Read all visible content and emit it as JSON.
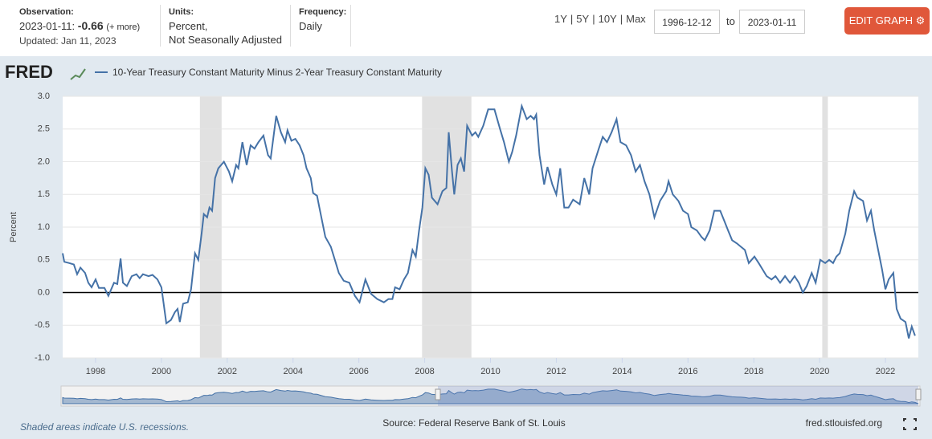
{
  "header": {
    "observation_label": "Observation:",
    "observation_date": "2023-01-11:",
    "observation_value": "-0.66",
    "more": "(+ more)",
    "updated": "Updated: Jan 11, 2023",
    "units_label": "Units:",
    "units_line1": "Percent,",
    "units_line2": "Not Seasonally Adjusted",
    "frequency_label": "Frequency:",
    "frequency": "Daily",
    "ranges": [
      "1Y",
      "5Y",
      "10Y",
      "Max"
    ],
    "range_separator": "|",
    "start_date": "1996-12-12",
    "to": "to",
    "end_date": "2023-01-11",
    "edit_button": "EDIT GRAPH"
  },
  "logo": "FRED",
  "footer": {
    "note": "Shaded areas indicate U.S. recessions.",
    "source": "Source: Federal Reserve Bank of St. Louis",
    "site": "fred.stlouisfed.org"
  },
  "chart_data": {
    "type": "line",
    "y_label": "Percent",
    "x": [
      1997.0,
      1997.05,
      1997.2,
      1997.34,
      1997.44,
      1997.54,
      1997.68,
      1997.78,
      1997.88,
      1998.0,
      1998.1,
      1998.27,
      1998.39,
      1998.56,
      1998.66,
      1998.76,
      1998.83,
      1998.95,
      1999.1,
      1999.24,
      1999.34,
      1999.44,
      1999.61,
      1999.73,
      1999.88,
      2000.0,
      2000.05,
      2000.15,
      2000.29,
      2000.41,
      2000.49,
      2000.56,
      2000.66,
      2000.8,
      2000.9,
      2001.02,
      2001.12,
      2001.22,
      2001.29,
      2001.39,
      2001.46,
      2001.54,
      2001.63,
      2001.73,
      2001.9,
      2002.05,
      2002.15,
      2002.27,
      2002.34,
      2002.46,
      2002.59,
      2002.71,
      2002.83,
      2002.95,
      2003.1,
      2003.24,
      2003.32,
      2003.49,
      2003.63,
      2003.76,
      2003.83,
      2003.95,
      2004.07,
      2004.2,
      2004.32,
      2004.41,
      2004.54,
      2004.61,
      2004.73,
      2004.8,
      2004.98,
      2005.15,
      2005.27,
      2005.39,
      2005.54,
      2005.71,
      2005.88,
      2006.02,
      2006.2,
      2006.37,
      2006.56,
      2006.76,
      2006.9,
      2007.02,
      2007.1,
      2007.24,
      2007.37,
      2007.49,
      2007.63,
      2007.73,
      2007.83,
      2007.93,
      2008.02,
      2008.12,
      2008.22,
      2008.39,
      2008.54,
      2008.66,
      2008.73,
      2008.83,
      2008.9,
      2009.0,
      2009.1,
      2009.2,
      2009.29,
      2009.44,
      2009.54,
      2009.63,
      2009.78,
      2009.93,
      2010.12,
      2010.29,
      2010.41,
      2010.56,
      2010.66,
      2010.78,
      2010.95,
      2011.1,
      2011.22,
      2011.32,
      2011.39,
      2011.49,
      2011.63,
      2011.73,
      2011.88,
      2012.0,
      2012.12,
      2012.24,
      2012.37,
      2012.51,
      2012.71,
      2012.85,
      2013.0,
      2013.1,
      2013.29,
      2013.41,
      2013.54,
      2013.68,
      2013.83,
      2013.95,
      2014.12,
      2014.27,
      2014.41,
      2014.54,
      2014.68,
      2014.83,
      2014.98,
      2015.15,
      2015.34,
      2015.41,
      2015.54,
      2015.71,
      2015.85,
      2016.0,
      2016.1,
      2016.27,
      2016.41,
      2016.51,
      2016.66,
      2016.8,
      2016.98,
      2017.1,
      2017.22,
      2017.34,
      2017.49,
      2017.61,
      2017.73,
      2017.85,
      2018.02,
      2018.15,
      2018.27,
      2018.39,
      2018.54,
      2018.66,
      2018.8,
      2018.95,
      2019.1,
      2019.24,
      2019.37,
      2019.49,
      2019.61,
      2019.76,
      2019.88,
      2020.02,
      2020.17,
      2020.29,
      2020.41,
      2020.51,
      2020.61,
      2020.78,
      2020.9,
      2021.05,
      2021.15,
      2021.32,
      2021.44,
      2021.56,
      2021.66,
      2021.76,
      2021.9,
      2022.0,
      2022.1,
      2022.24,
      2022.34,
      2022.46,
      2022.61,
      2022.71,
      2022.8,
      2022.9
    ],
    "series": [
      {
        "name": "10-Year Treasury Constant Maturity Minus 2-Year Treasury Constant Maturity",
        "color": "#4572a7",
        "values": [
          0.6,
          0.47,
          0.45,
          0.43,
          0.28,
          0.38,
          0.3,
          0.15,
          0.08,
          0.2,
          0.07,
          0.07,
          -0.05,
          0.15,
          0.13,
          0.52,
          0.15,
          0.1,
          0.25,
          0.28,
          0.22,
          0.28,
          0.25,
          0.27,
          0.2,
          0.08,
          -0.1,
          -0.47,
          -0.42,
          -0.3,
          -0.25,
          -0.45,
          -0.17,
          -0.15,
          0.05,
          0.6,
          0.5,
          0.9,
          1.2,
          1.15,
          1.3,
          1.25,
          1.75,
          1.9,
          2.0,
          1.85,
          1.7,
          1.95,
          1.9,
          2.3,
          1.95,
          2.25,
          2.2,
          2.3,
          2.4,
          2.1,
          2.05,
          2.7,
          2.45,
          2.3,
          2.48,
          2.32,
          2.35,
          2.25,
          2.1,
          1.9,
          1.75,
          1.52,
          1.48,
          1.3,
          0.85,
          0.7,
          0.5,
          0.3,
          0.18,
          0.15,
          -0.05,
          -0.15,
          0.2,
          -0.02,
          -0.1,
          -0.15,
          -0.1,
          -0.1,
          0.08,
          0.05,
          0.2,
          0.3,
          0.65,
          0.55,
          0.95,
          1.3,
          1.9,
          1.8,
          1.45,
          1.35,
          1.55,
          1.6,
          2.45,
          1.85,
          1.5,
          1.95,
          2.05,
          1.85,
          2.55,
          2.4,
          2.45,
          2.38,
          2.55,
          2.8,
          2.8,
          2.5,
          2.3,
          2.0,
          2.15,
          2.4,
          2.85,
          2.65,
          2.7,
          2.65,
          2.72,
          2.1,
          1.65,
          1.92,
          1.65,
          1.5,
          1.9,
          1.3,
          1.3,
          1.42,
          1.35,
          1.75,
          1.5,
          1.9,
          2.2,
          2.38,
          2.3,
          2.45,
          2.65,
          2.3,
          2.25,
          2.1,
          1.85,
          1.95,
          1.7,
          1.5,
          1.15,
          1.4,
          1.55,
          1.7,
          1.5,
          1.4,
          1.25,
          1.2,
          1.0,
          0.95,
          0.85,
          0.8,
          0.95,
          1.25,
          1.25,
          1.1,
          0.95,
          0.8,
          0.75,
          0.7,
          0.65,
          0.45,
          0.55,
          0.45,
          0.35,
          0.25,
          0.2,
          0.25,
          0.15,
          0.25,
          0.15,
          0.25,
          0.15,
          0.0,
          0.1,
          0.3,
          0.15,
          0.5,
          0.45,
          0.5,
          0.45,
          0.55,
          0.6,
          0.9,
          1.25,
          1.55,
          1.45,
          1.4,
          1.1,
          1.25,
          0.95,
          0.7,
          0.35,
          0.05,
          0.2,
          0.3,
          -0.25,
          -0.4,
          -0.45,
          -0.7,
          -0.52,
          -0.66
        ]
      }
    ],
    "recessions": [
      [
        2001.17,
        2001.83
      ],
      [
        2007.92,
        2009.42
      ],
      [
        2020.08,
        2020.25
      ]
    ],
    "reference_line": 0,
    "xlim": [
      1997.0,
      2023.0
    ],
    "xticks": [
      1998,
      2000,
      2002,
      2004,
      2006,
      2008,
      2010,
      2012,
      2014,
      2016,
      2018,
      2020,
      2022
    ],
    "ylim": [
      -1,
      3
    ],
    "yticks": [
      {
        "value": -1,
        "label": "-1.0"
      },
      {
        "value": -0.5,
        "label": "-0.5"
      },
      {
        "value": 0,
        "label": "0.0"
      },
      {
        "value": 0.5,
        "label": "0.5"
      },
      {
        "value": 1,
        "label": "1.0"
      },
      {
        "value": 1.5,
        "label": "1.5"
      },
      {
        "value": 2,
        "label": "2.0"
      },
      {
        "value": 2.5,
        "label": "2.5"
      },
      {
        "value": 3,
        "label": "3.0"
      }
    ],
    "grid": true
  }
}
